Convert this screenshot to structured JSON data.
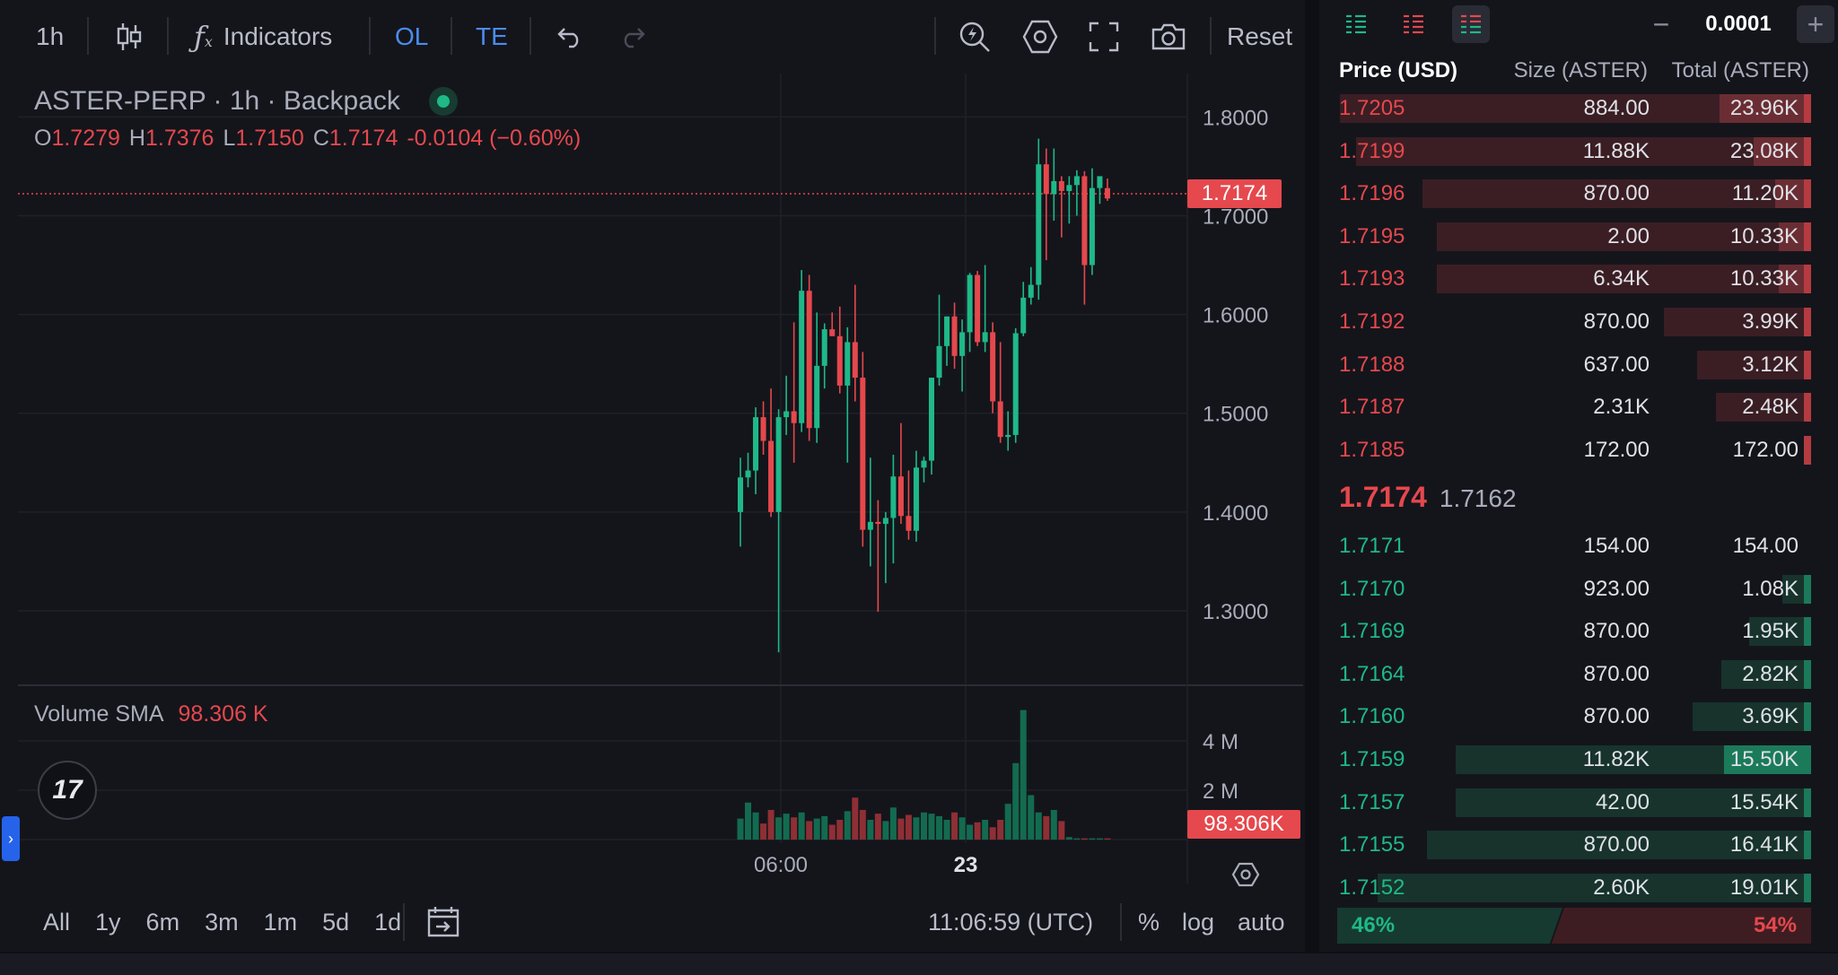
{
  "toolbar": {
    "interval": "1h",
    "indicators_label": "Indicators",
    "ol_label": "OL",
    "te_label": "TE",
    "reset_label": "Reset"
  },
  "chart": {
    "symbol_title": "ASTER-PERP · 1h · Backpack",
    "ohlc": {
      "o_label": "O",
      "o": "1.7279",
      "h_label": "H",
      "h": "1.7376",
      "l_label": "L",
      "l": "1.7150",
      "c_label": "C",
      "c": "1.7174",
      "change": "-0.0104 (−0.60%)"
    },
    "last_price_tag": "1.7174",
    "volume_label": "Volume SMA",
    "volume_sma": "98.306 K",
    "volume_tag": "98.306K",
    "price_axis": [
      "1.8000",
      "1.7000",
      "1.6000",
      "1.5000",
      "1.4000",
      "1.3000"
    ],
    "volume_axis": [
      "4 M",
      "2 M"
    ],
    "time_axis": [
      "06:00",
      "23"
    ],
    "tv_logo": "17",
    "colors": {
      "up": "#1fb889",
      "down": "#e5484d",
      "background": "#14151b"
    }
  },
  "chart_data": {
    "type": "candlestick",
    "price_range": [
      1.25,
      1.84
    ],
    "candles": [
      {
        "o": 1.4,
        "h": 1.455,
        "l": 1.365,
        "c": 1.435
      },
      {
        "o": 1.435,
        "h": 1.46,
        "l": 1.425,
        "c": 1.442
      },
      {
        "o": 1.442,
        "h": 1.506,
        "l": 1.418,
        "c": 1.496
      },
      {
        "o": 1.496,
        "h": 1.512,
        "l": 1.458,
        "c": 1.472
      },
      {
        "o": 1.472,
        "h": 1.525,
        "l": 1.395,
        "c": 1.4
      },
      {
        "o": 1.4,
        "h": 1.504,
        "l": 1.258,
        "c": 1.496
      },
      {
        "o": 1.496,
        "h": 1.538,
        "l": 1.478,
        "c": 1.502
      },
      {
        "o": 1.502,
        "h": 1.592,
        "l": 1.45,
        "c": 1.49
      },
      {
        "o": 1.49,
        "h": 1.645,
        "l": 1.481,
        "c": 1.624
      },
      {
        "o": 1.624,
        "h": 1.64,
        "l": 1.472,
        "c": 1.485
      },
      {
        "o": 1.485,
        "h": 1.602,
        "l": 1.47,
        "c": 1.548
      },
      {
        "o": 1.548,
        "h": 1.591,
        "l": 1.525,
        "c": 1.585
      },
      {
        "o": 1.585,
        "h": 1.602,
        "l": 1.58,
        "c": 1.578
      },
      {
        "o": 1.578,
        "h": 1.608,
        "l": 1.52,
        "c": 1.528
      },
      {
        "o": 1.528,
        "h": 1.587,
        "l": 1.45,
        "c": 1.572
      },
      {
        "o": 1.572,
        "h": 1.63,
        "l": 1.512,
        "c": 1.536
      },
      {
        "o": 1.536,
        "h": 1.562,
        "l": 1.365,
        "c": 1.382
      },
      {
        "o": 1.382,
        "h": 1.455,
        "l": 1.345,
        "c": 1.39
      },
      {
        "o": 1.39,
        "h": 1.412,
        "l": 1.299,
        "c": 1.388
      },
      {
        "o": 1.388,
        "h": 1.4,
        "l": 1.328,
        "c": 1.394
      },
      {
        "o": 1.394,
        "h": 1.458,
        "l": 1.348,
        "c": 1.436
      },
      {
        "o": 1.436,
        "h": 1.49,
        "l": 1.388,
        "c": 1.396
      },
      {
        "o": 1.396,
        "h": 1.442,
        "l": 1.372,
        "c": 1.381
      },
      {
        "o": 1.381,
        "h": 1.462,
        "l": 1.37,
        "c": 1.445
      },
      {
        "o": 1.445,
        "h": 1.456,
        "l": 1.43,
        "c": 1.452
      },
      {
        "o": 1.452,
        "h": 1.536,
        "l": 1.438,
        "c": 1.536
      },
      {
        "o": 1.536,
        "h": 1.62,
        "l": 1.528,
        "c": 1.568
      },
      {
        "o": 1.568,
        "h": 1.598,
        "l": 1.548,
        "c": 1.598
      },
      {
        "o": 1.598,
        "h": 1.612,
        "l": 1.545,
        "c": 1.558
      },
      {
        "o": 1.558,
        "h": 1.595,
        "l": 1.522,
        "c": 1.582
      },
      {
        "o": 1.582,
        "h": 1.642,
        "l": 1.562,
        "c": 1.64
      },
      {
        "o": 1.64,
        "h": 1.644,
        "l": 1.568,
        "c": 1.572
      },
      {
        "o": 1.572,
        "h": 1.65,
        "l": 1.562,
        "c": 1.582
      },
      {
        "o": 1.582,
        "h": 1.592,
        "l": 1.5,
        "c": 1.512
      },
      {
        "o": 1.512,
        "h": 1.572,
        "l": 1.47,
        "c": 1.476
      },
      {
        "o": 1.476,
        "h": 1.502,
        "l": 1.462,
        "c": 1.478
      },
      {
        "o": 1.478,
        "h": 1.586,
        "l": 1.47,
        "c": 1.581
      },
      {
        "o": 1.581,
        "h": 1.633,
        "l": 1.578,
        "c": 1.617
      },
      {
        "o": 1.617,
        "h": 1.648,
        "l": 1.61,
        "c": 1.63
      },
      {
        "o": 1.63,
        "h": 1.778,
        "l": 1.615,
        "c": 1.752
      },
      {
        "o": 1.752,
        "h": 1.768,
        "l": 1.655,
        "c": 1.722
      },
      {
        "o": 1.722,
        "h": 1.768,
        "l": 1.695,
        "c": 1.735
      },
      {
        "o": 1.735,
        "h": 1.74,
        "l": 1.678,
        "c": 1.725
      },
      {
        "o": 1.725,
        "h": 1.74,
        "l": 1.692,
        "c": 1.731
      },
      {
        "o": 1.731,
        "h": 1.746,
        "l": 1.7,
        "c": 1.74
      },
      {
        "o": 1.74,
        "h": 1.745,
        "l": 1.61,
        "c": 1.65
      },
      {
        "o": 1.65,
        "h": 1.748,
        "l": 1.64,
        "c": 1.728
      },
      {
        "o": 1.728,
        "h": 1.738,
        "l": 1.712,
        "c": 1.74
      },
      {
        "o": 1.7279,
        "h": 1.7376,
        "l": 1.715,
        "c": 1.7174
      }
    ],
    "volume_range": [
      0,
      5.2
    ],
    "volumes_m": [
      0.85,
      1.5,
      1.1,
      0.65,
      1.2,
      0.9,
      1.05,
      0.9,
      1.1,
      0.75,
      0.85,
      0.95,
      0.6,
      0.8,
      1.15,
      1.7,
      1.2,
      0.8,
      1.05,
      0.75,
      1.3,
      0.85,
      1.0,
      0.9,
      1.1,
      1.05,
      0.95,
      0.8,
      1.1,
      0.9,
      0.6,
      0.7,
      0.8,
      0.5,
      0.8,
      1.45,
      3.1,
      5.25,
      1.8,
      1.1,
      0.95,
      1.2,
      0.75,
      0.1,
      0.05,
      0.05,
      0.05,
      0.05,
      0.05
    ],
    "last_price": 1.7174
  },
  "range_bar": {
    "ranges": [
      "All",
      "1y",
      "6m",
      "3m",
      "1m",
      "5d",
      "1d"
    ],
    "clock": "11:06:59 (UTC)",
    "percent_label": "%",
    "log_label": "log",
    "auto_label": "auto"
  },
  "orderbook": {
    "tick_size": "0.0001",
    "headers": {
      "price": "Price (USD)",
      "size": "Size (ASTER)",
      "total": "Total (ASTER)"
    },
    "asks": [
      {
        "price": "1.7205",
        "size": "884.00",
        "total": "23.96K",
        "depth": 0.995,
        "sizefrac": 0.565
      },
      {
        "price": "1.7199",
        "size": "11.88K",
        "total": "23.08K",
        "depth": 0.96,
        "sizefrac": 0.355
      },
      {
        "price": "1.7196",
        "size": "870.00",
        "total": "11.20K",
        "depth": 0.82,
        "sizefrac": 0.22
      },
      {
        "price": "1.7195",
        "size": "2.00",
        "total": "10.33K",
        "depth": 0.79,
        "sizefrac": 0.2
      },
      {
        "price": "1.7193",
        "size": "6.34K",
        "total": "10.33K",
        "depth": 0.79,
        "sizefrac": 0.2
      },
      {
        "price": "1.7192",
        "size": "870.00",
        "total": "3.99K",
        "depth": 0.31,
        "sizefrac": 0.0
      },
      {
        "price": "1.7188",
        "size": "637.00",
        "total": "3.12K",
        "depth": 0.24,
        "sizefrac": 0.0
      },
      {
        "price": "1.7187",
        "size": "2.31K",
        "total": "2.48K",
        "depth": 0.2,
        "sizefrac": 0.0
      },
      {
        "price": "1.7185",
        "size": "172.00",
        "total": "172.00",
        "depth": 0.0,
        "sizefrac": 0.0
      }
    ],
    "last_trade": "1.7174",
    "mark_price": "1.7162",
    "bids": [
      {
        "price": "1.7171",
        "size": "154.00",
        "total": "154.00",
        "depth": 0.0,
        "sizefrac": 0.0
      },
      {
        "price": "1.7170",
        "size": "923.00",
        "total": "1.08K",
        "depth": 0.06,
        "sizefrac": 0.0
      },
      {
        "price": "1.7169",
        "size": "870.00",
        "total": "1.95K",
        "depth": 0.13,
        "sizefrac": 0.0
      },
      {
        "price": "1.7164",
        "size": "870.00",
        "total": "2.82K",
        "depth": 0.19,
        "sizefrac": 0.0
      },
      {
        "price": "1.7160",
        "size": "870.00",
        "total": "3.69K",
        "depth": 0.25,
        "sizefrac": 0.0
      },
      {
        "price": "1.7159",
        "size": "11.82K",
        "total": "15.50K",
        "depth": 0.75,
        "sizefrac": 0.54
      },
      {
        "price": "1.7157",
        "size": "42.00",
        "total": "15.54K",
        "depth": 0.75,
        "sizefrac": 0.0
      },
      {
        "price": "1.7155",
        "size": "870.00",
        "total": "16.41K",
        "depth": 0.81,
        "sizefrac": 0.0
      },
      {
        "price": "1.7152",
        "size": "2.60K",
        "total": "19.01K",
        "depth": 0.915,
        "sizefrac": 0.0
      }
    ],
    "bid_pct": "46%",
    "ask_pct": "54%",
    "bid_frac": 0.46
  }
}
